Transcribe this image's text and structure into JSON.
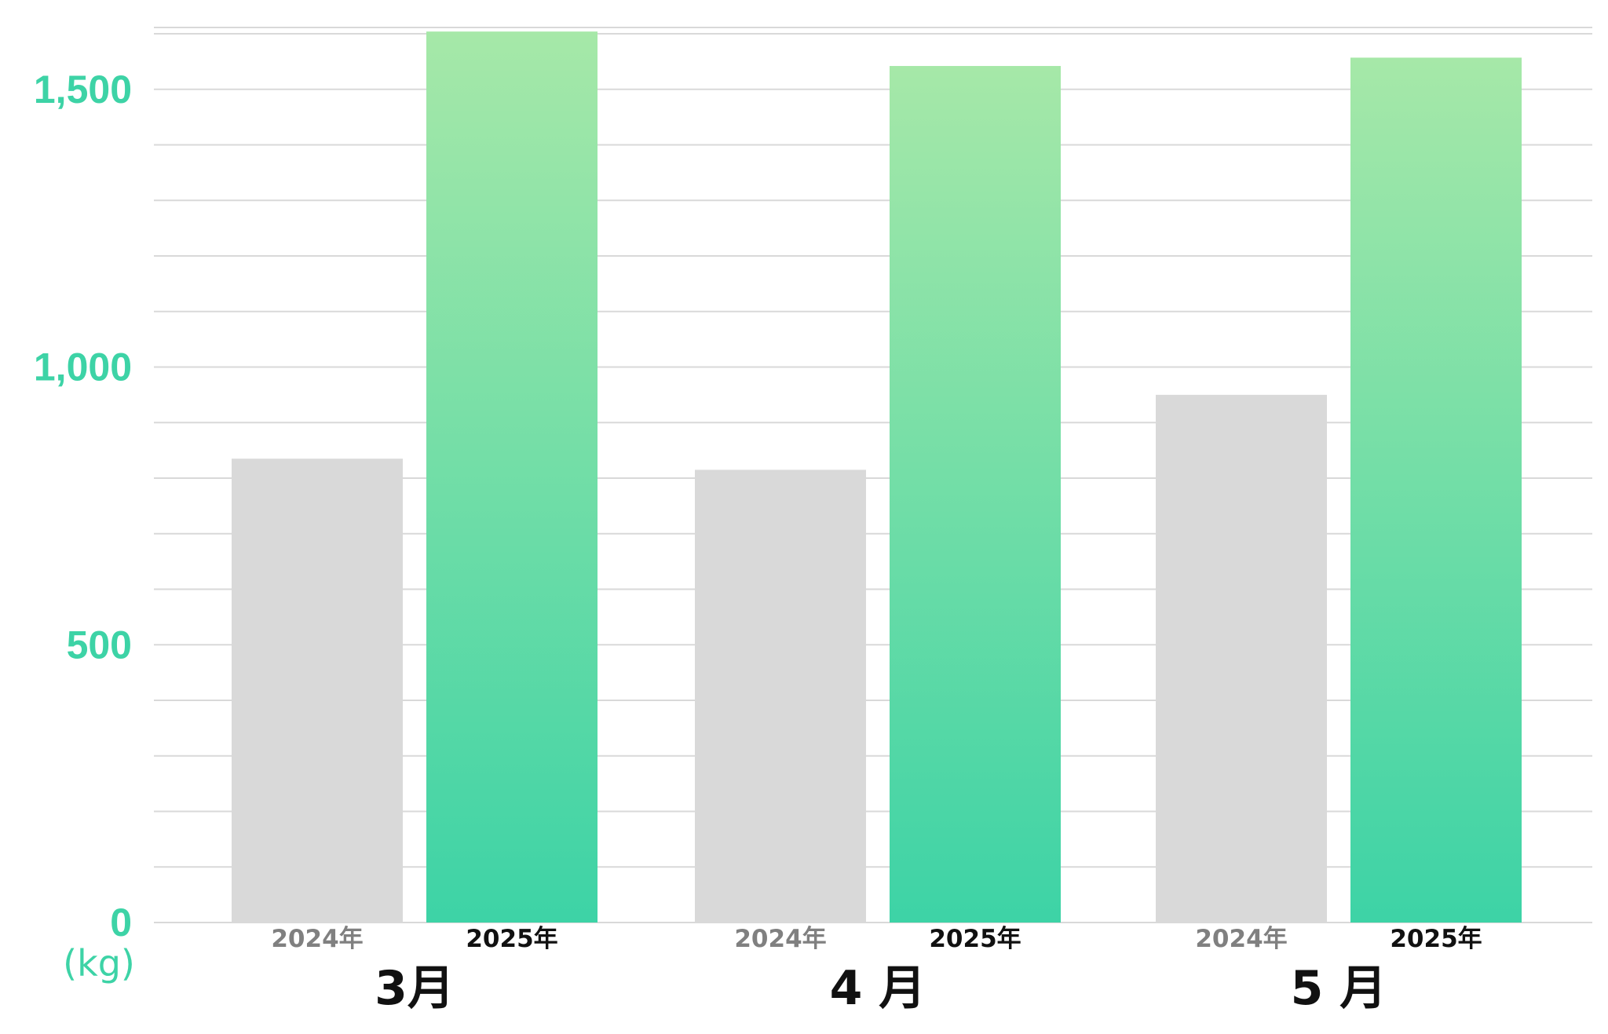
{
  "chart_data": {
    "type": "bar",
    "title": "",
    "xlabel": "",
    "ylabel": "",
    "y_unit": "(kg)",
    "categories": [
      "3月",
      "4 月",
      "5 月"
    ],
    "series": [
      {
        "name": "2024年",
        "values": [
          835,
          815,
          950
        ],
        "color": "#d9d9d9",
        "label_color": "#808080"
      },
      {
        "name": "2025年",
        "values": [
          1604,
          1542,
          1557
        ],
        "color_top": "#a6e8a8",
        "color_bottom": "#3dd3a6",
        "label_color": "#111111"
      }
    ],
    "ylim": [
      0,
      1600
    ],
    "major_ticks": [
      0,
      500,
      1000,
      1500
    ],
    "minor_gridline_step": 100,
    "grid": true,
    "legend": "none",
    "axis_text_color": "#3dd3a6",
    "gridline_color": "#d9d9d9"
  }
}
